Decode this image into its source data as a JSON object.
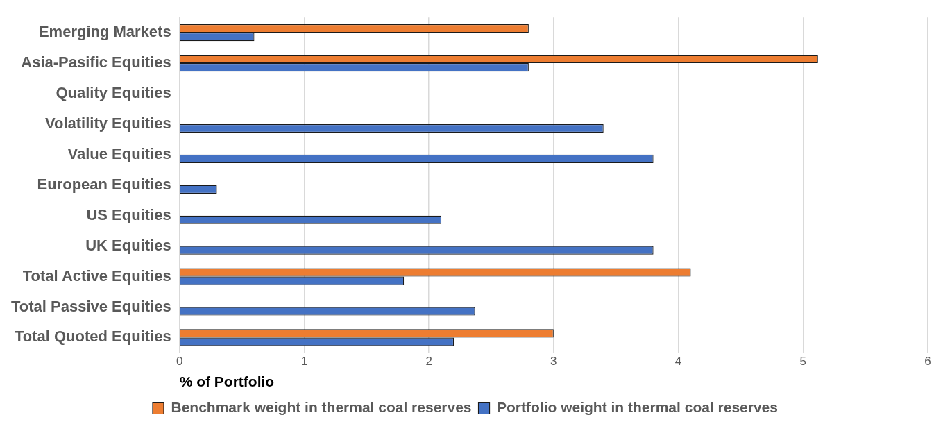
{
  "chart_data": {
    "type": "bar",
    "orientation": "horizontal",
    "xlabel": "% of Portfolio",
    "categories": [
      "Emerging Markets",
      "Asia-Pasific Equities",
      "Quality Equities",
      "Volatility Equities",
      "Value Equities",
      "European Equities",
      "US Equities",
      "UK Equities",
      "Total Active Equities",
      "Total Passive Equities",
      "Total Quoted Equities"
    ],
    "series": [
      {
        "name": "Benchmark weight in thermal coal reserves",
        "color": "#ed7d31",
        "values": [
          2.8,
          5.12,
          null,
          null,
          null,
          null,
          null,
          null,
          4.1,
          null,
          3.0
        ]
      },
      {
        "name": "Portfolio weight in thermal coal reserves",
        "color": "#4472c4",
        "values": [
          0.6,
          2.8,
          null,
          3.4,
          3.8,
          0.3,
          2.1,
          3.8,
          1.8,
          2.37,
          2.2
        ]
      }
    ],
    "xlim": [
      0,
      6
    ],
    "xticks": [
      0,
      1,
      2,
      3,
      4,
      5,
      6
    ],
    "grid": "x",
    "legend": "bottom"
  }
}
